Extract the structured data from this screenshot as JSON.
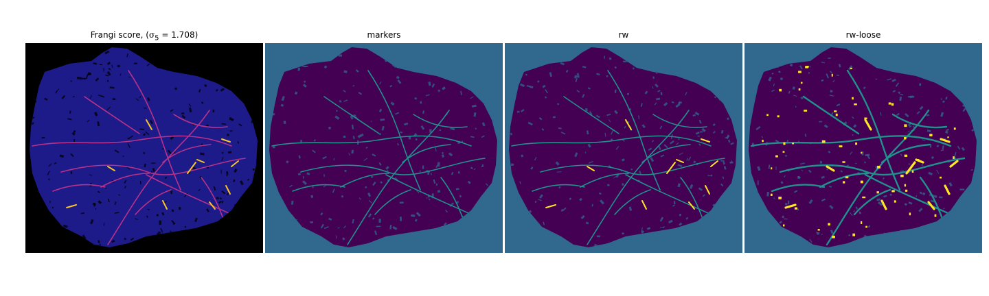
{
  "panels": [
    {
      "title_prefix": "Frangi score, (",
      "title_math": "σ",
      "title_sub": "5",
      "title_suffix": " = 1.708)",
      "colormap": "plasma",
      "background_color": "#000000",
      "tissue_color": "#1d1a8a",
      "vessel_color": "#b83289",
      "highlight_color": "#fcc527"
    },
    {
      "title": "markers",
      "colormap": "viridis",
      "background_color": "#31688e",
      "tissue_color": "#440154",
      "vessel_color": "#21918c"
    },
    {
      "title": "rw",
      "colormap": "viridis",
      "background_color": "#31688e",
      "tissue_color": "#440154",
      "vessel_color": "#21918c",
      "highlight_color": "#fde725"
    },
    {
      "title": "rw-loose",
      "colormap": "viridis",
      "background_color": "#31688e",
      "tissue_color": "#440154",
      "vessel_color": "#21918c",
      "highlight_color": "#fde725"
    }
  ]
}
